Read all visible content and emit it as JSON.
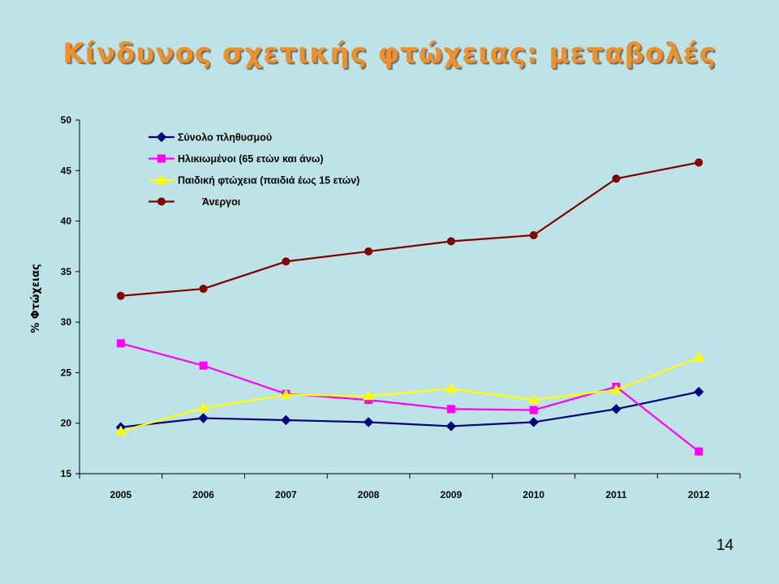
{
  "slide": {
    "title": "Κίνδυνος σχετικής φτώχειας: μεταβολές",
    "page_number": "14"
  },
  "chart_data": {
    "type": "line",
    "title": "",
    "xlabel": "",
    "ylabel": "% Φτώχειας",
    "x": [
      "2005",
      "2006",
      "2007",
      "2008",
      "2009",
      "2010",
      "2011",
      "2012"
    ],
    "ylim": [
      15,
      50
    ],
    "yticks": [
      15,
      20,
      25,
      30,
      35,
      40,
      45,
      50
    ],
    "grid": false,
    "legend_position": "top-left",
    "series": [
      {
        "name": "Σύνολο πληθυσμού",
        "values": [
          19.6,
          20.5,
          20.3,
          20.1,
          19.7,
          20.1,
          21.4,
          23.1
        ],
        "color": "#00007f",
        "marker": "diamond"
      },
      {
        "name": "Ηλικιωμένοι (65 ετών και άνω)",
        "values": [
          27.9,
          25.7,
          22.9,
          22.3,
          21.4,
          21.3,
          23.6,
          17.2
        ],
        "color": "#ff00ff",
        "marker": "square"
      },
      {
        "name": "Παιδική φτώχεια (παιδιά έως 15 ετών)",
        "values": [
          19.2,
          21.5,
          22.8,
          22.7,
          23.4,
          22.3,
          23.3,
          26.5
        ],
        "color": "#ffff00",
        "marker": "triangle"
      },
      {
        "name": "Άνεργοι",
        "values": [
          32.6,
          33.3,
          36.0,
          37.0,
          38.0,
          38.6,
          44.2,
          45.8
        ],
        "color": "#800000",
        "marker": "circle"
      }
    ]
  }
}
